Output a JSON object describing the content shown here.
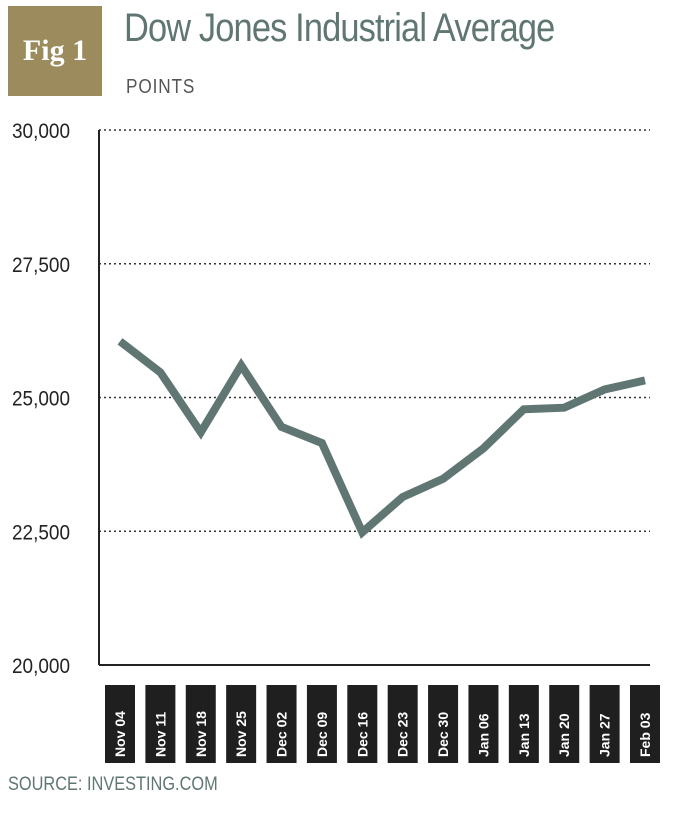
{
  "badge": "Fig 1",
  "title": "Dow Jones Industrial Average",
  "subtitle": "POINTS",
  "source": "SOURCE: INVESTING.COM",
  "colors": {
    "line": "#5f7673",
    "badge": "#9c8b5d",
    "tick_box": "#1f1f1f",
    "grid": "#333333"
  },
  "chart_data": {
    "type": "line",
    "categories": [
      "Nov 04",
      "Nov 11",
      "Nov 18",
      "Nov 25",
      "Dec 02",
      "Dec 09",
      "Dec 16",
      "Dec 23",
      "Dec 30",
      "Jan 06",
      "Jan 13",
      "Jan 20",
      "Jan 27",
      "Feb 03"
    ],
    "values": [
      26050,
      25470,
      24350,
      25600,
      24450,
      24150,
      22480,
      23140,
      23480,
      24050,
      24780,
      24810,
      25150,
      25320
    ],
    "y_ticks": [
      20000,
      22500,
      25000,
      27500,
      30000
    ],
    "y_tick_labels": [
      "20,000",
      "22,500",
      "25,000",
      "27,500",
      "30,000"
    ],
    "ylim": [
      20000,
      30000
    ],
    "grid": "dotted horizontal"
  }
}
